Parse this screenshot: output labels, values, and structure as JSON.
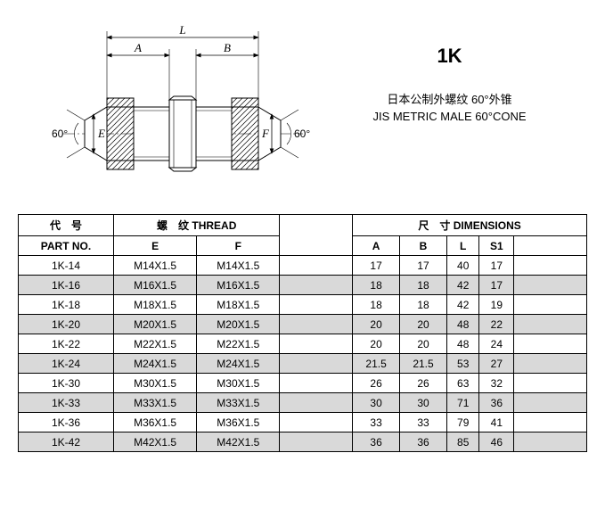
{
  "product": {
    "code": "1K",
    "desc_cn": "日本公制外螺纹 60°外锥",
    "desc_en": "JIS METRIC MALE 60°CONE"
  },
  "diagram": {
    "labels": {
      "L": "L",
      "A": "A",
      "B": "B",
      "E": "E",
      "F": "F"
    },
    "angle_left": "60°",
    "angle_right": "60°",
    "line_color": "#000000",
    "hatch_color": "#000000",
    "background": "#ffffff"
  },
  "table": {
    "headers": {
      "partno_group_cn": "代　号",
      "thread_group_cn": "螺　纹",
      "thread_group_en": "THREAD",
      "dims_group_cn": "尺　寸",
      "dims_group_en": "DIMENSIONS",
      "partno": "PART  NO.",
      "E": "E",
      "F": "F",
      "reserved": "",
      "A": "A",
      "B": "B",
      "L": "L",
      "S1": "S1",
      "reserved2": ""
    },
    "rows": [
      {
        "part": "1K-14",
        "E": "M14X1.5",
        "F": "M14X1.5",
        "A": "17",
        "B": "17",
        "L": "40",
        "S1": "17"
      },
      {
        "part": "1K-16",
        "E": "M16X1.5",
        "F": "M16X1.5",
        "A": "18",
        "B": "18",
        "L": "42",
        "S1": "17"
      },
      {
        "part": "1K-18",
        "E": "M18X1.5",
        "F": "M18X1.5",
        "A": "18",
        "B": "18",
        "L": "42",
        "S1": "19"
      },
      {
        "part": "1K-20",
        "E": "M20X1.5",
        "F": "M20X1.5",
        "A": "20",
        "B": "20",
        "L": "48",
        "S1": "22"
      },
      {
        "part": "1K-22",
        "E": "M22X1.5",
        "F": "M22X1.5",
        "A": "20",
        "B": "20",
        "L": "48",
        "S1": "24"
      },
      {
        "part": "1K-24",
        "E": "M24X1.5",
        "F": "M24X1.5",
        "A": "21.5",
        "B": "21.5",
        "L": "53",
        "S1": "27"
      },
      {
        "part": "1K-30",
        "E": "M30X1.5",
        "F": "M30X1.5",
        "A": "26",
        "B": "26",
        "L": "63",
        "S1": "32"
      },
      {
        "part": "1K-33",
        "E": "M33X1.5",
        "F": "M33X1.5",
        "A": "30",
        "B": "30",
        "L": "71",
        "S1": "36"
      },
      {
        "part": "1K-36",
        "E": "M36X1.5",
        "F": "M36X1.5",
        "A": "33",
        "B": "33",
        "L": "79",
        "S1": "41"
      },
      {
        "part": "1K-42",
        "E": "M42X1.5",
        "F": "M42X1.5",
        "A": "36",
        "B": "36",
        "L": "85",
        "S1": "46"
      }
    ],
    "alt_row_bg": "#d9d9d9",
    "border_color": "#000000",
    "font_size": 12
  }
}
